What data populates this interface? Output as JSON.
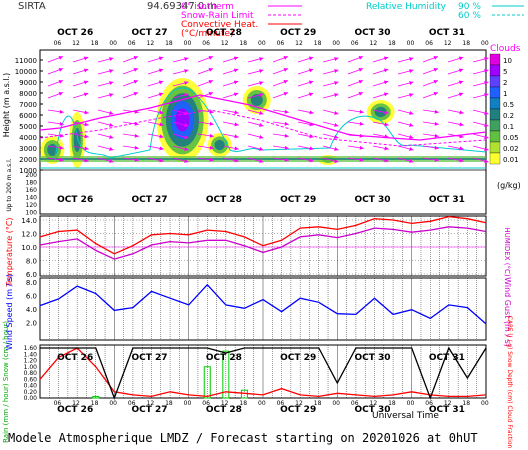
{
  "header": {
    "site": "SIRTA",
    "coords": "94.69347 0.m",
    "legend_left": [
      {
        "label": "0° isotherm",
        "color": "#ff00ff",
        "style": "solid"
      },
      {
        "label": "Snow-Rain Limit",
        "color": "#ff00ff",
        "style": "dashed"
      },
      {
        "label": "Convective Heat.",
        "color": "#ff0000",
        "style": "solid"
      },
      {
        "label": "(°C/minute)",
        "color": "#ff0000",
        "style": "none"
      }
    ],
    "legend_right": [
      {
        "label": "Relative Humidity",
        "value": "90 %",
        "color": "#00cccc",
        "style": "solid"
      },
      {
        "label": "",
        "value": "60 %",
        "color": "#00cccc",
        "style": "dashed"
      }
    ]
  },
  "days": [
    "OCT 26",
    "OCT 27",
    "OCT 28",
    "OCT 29",
    "OCT 30",
    "OCT 31"
  ],
  "hours": [
    "06",
    "12",
    "18",
    "00"
  ],
  "panels": {
    "height": {
      "ylabel": "Height (m a.s.l.)",
      "ylabel_low": "Up to 200 m a.s.l.",
      "ticks_high": [
        "11000",
        "10000",
        "9000",
        "8000",
        "7000",
        "6000",
        "5000",
        "4000",
        "3000",
        "2000",
        "1000"
      ],
      "ticks_low": [
        "200",
        "180",
        "160",
        "140",
        "120",
        "100"
      ]
    },
    "temperature": {
      "ylabel": "Temperature (°C)",
      "ylabel_right": "HUMIDEX (°C)",
      "ticks": [
        "14.0",
        "12.0",
        "10.0",
        "8.0",
        "6.0"
      ]
    },
    "wind": {
      "ylabel": "Wind Speed (m / s)",
      "ylabel_right": "Wind Gust (m / s)",
      "ticks": [
        "8.0",
        "6.0",
        "4.0",
        "2.0"
      ]
    },
    "rain": {
      "ylabel": "Rain (mm / hour) Snow (cm / hour)",
      "ylabel_right": "CAPE (J / g) Snow Depth (cm) Cloud Fraction",
      "ticks": [
        "1.60",
        "1.40",
        "1.20",
        "1.00",
        "0.80",
        "0.60",
        "0.40",
        "0.20",
        "0.00"
      ],
      "xlabel": "Universal Time"
    }
  },
  "clouds_scale": {
    "title": "Clouds",
    "unit": "(g/kg)",
    "labels": [
      "10",
      "5",
      "2",
      "1",
      "0.5",
      "0.2",
      "0.1",
      "0.05",
      "0.02",
      "0.01"
    ],
    "colors": [
      "#e000e0",
      "#a000ff",
      "#6040ff",
      "#2060ff",
      "#1080c0",
      "#208080",
      "#40a060",
      "#60c040",
      "#b0e030",
      "#ffff30"
    ]
  },
  "chart_data": {
    "type": "line",
    "x_hours": [
      0,
      6,
      12,
      18,
      24,
      30,
      36,
      42,
      48,
      54,
      60,
      66,
      72,
      78,
      84,
      90,
      96,
      102,
      108,
      114,
      120,
      126,
      132,
      138,
      144
    ],
    "series": [
      {
        "name": "Temperature",
        "color": "#ff0000",
        "values": [
          11.5,
          12.3,
          12.5,
          10.5,
          9.0,
          10.2,
          11.8,
          12.0,
          11.8,
          12.5,
          12.3,
          11.5,
          10.2,
          11.0,
          12.8,
          13.0,
          12.6,
          13.2,
          14.2,
          14.0,
          13.5,
          13.8,
          14.5,
          14.2,
          13.6
        ]
      },
      {
        "name": "HUMIDEX",
        "color": "#cc00cc",
        "values": [
          10.3,
          10.8,
          11.2,
          9.5,
          8.2,
          9.0,
          10.3,
          10.8,
          10.6,
          11.0,
          11.0,
          10.2,
          9.2,
          10.0,
          11.5,
          11.8,
          11.4,
          12.0,
          12.8,
          12.6,
          12.2,
          12.5,
          13.0,
          12.8,
          12.3
        ]
      },
      {
        "name": "Wind Speed",
        "color": "#0000ff",
        "values": [
          4.5,
          5.5,
          7.4,
          6.3,
          3.8,
          4.2,
          6.6,
          5.6,
          4.6,
          7.6,
          4.6,
          4.1,
          5.4,
          3.6,
          5.6,
          5.0,
          3.3,
          3.2,
          5.6,
          3.2,
          3.9,
          2.6,
          4.6,
          4.2,
          1.8
        ]
      },
      {
        "name": "Rain",
        "color": "#00cc00",
        "values": [
          0.0,
          0.0,
          0.0,
          0.05,
          0.0,
          0.0,
          0.0,
          0.0,
          0.0,
          1.0,
          1.5,
          0.25,
          0.0,
          0.0,
          0.0,
          0.0,
          0.0,
          0.0,
          0.0,
          0.0,
          0.0,
          0.0,
          0.0,
          0.0,
          0.0
        ]
      },
      {
        "name": "CAPE",
        "color": "#ff0000",
        "values": [
          0.6,
          1.3,
          1.6,
          1.0,
          0.2,
          0.1,
          0.05,
          0.2,
          0.1,
          0.05,
          0.2,
          0.15,
          0.1,
          0.3,
          0.1,
          0.05,
          0.15,
          0.1,
          0.05,
          0.1,
          0.2,
          0.1,
          0.05,
          0.05,
          0.1
        ]
      },
      {
        "name": "Cloud Fraction",
        "color": "#000000",
        "values": [
          1.0,
          1.0,
          1.0,
          1.0,
          0.0,
          1.0,
          1.0,
          1.0,
          1.0,
          1.0,
          0.9,
          1.0,
          1.0,
          1.0,
          1.0,
          1.0,
          0.3,
          1.0,
          1.0,
          1.0,
          1.0,
          0.0,
          1.0,
          0.4,
          1.0
        ]
      }
    ],
    "xlim": [
      0,
      144
    ],
    "temperature_ylim": [
      6,
      14
    ],
    "wind_ylim": [
      0,
      8
    ],
    "rain_ylim": [
      0,
      1.6
    ],
    "height_ylim": [
      1000,
      11000
    ],
    "grid": true
  },
  "footer": "Modele Atmospherique LMDZ / Forecast starting on 20201026 at 0hUT"
}
